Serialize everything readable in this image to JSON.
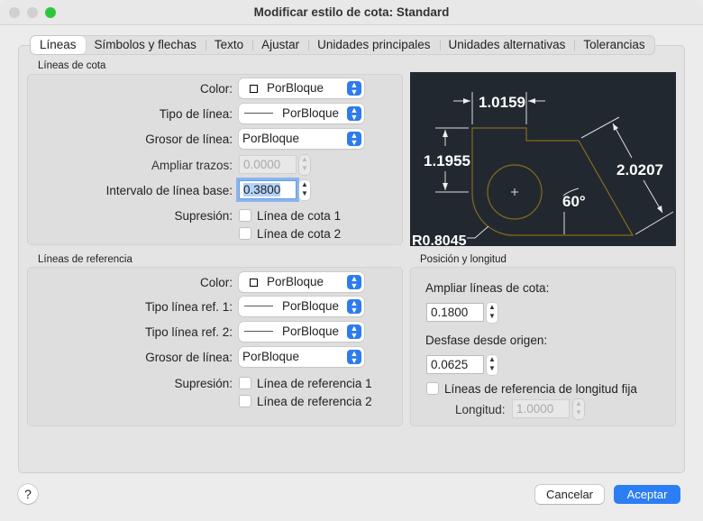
{
  "window": {
    "title": "Modificar estilo de cota: Standard"
  },
  "tabs": [
    {
      "label": "Líneas",
      "active": true
    },
    {
      "label": "Símbolos y flechas"
    },
    {
      "label": "Texto"
    },
    {
      "label": "Ajustar"
    },
    {
      "label": "Unidades principales"
    },
    {
      "label": "Unidades alternativas"
    },
    {
      "label": "Tolerancias"
    }
  ],
  "dim_lines": {
    "title": "Líneas de cota",
    "color_label": "Color:",
    "color_value": "PorBloque",
    "linetype_label": "Tipo de línea:",
    "linetype_value": "PorBloque",
    "lineweight_label": "Grosor de línea:",
    "lineweight_value": "PorBloque",
    "extend_label": "Ampliar trazos:",
    "extend_value": "0.0000",
    "baseline_label": "Intervalo de línea base:",
    "baseline_value": "0.3800",
    "suppress_label": "Supresión:",
    "suppress_1": "Línea de cota 1",
    "suppress_2": "Línea de cota 2"
  },
  "preview": {
    "dim_top": "1.0159",
    "dim_left": "1.1955",
    "dim_right": "2.0207",
    "angle": "60°",
    "radius": "R0.8045",
    "line_color": "#8a6a1e",
    "bg": "#212830"
  },
  "ext_lines": {
    "title": "Líneas de referencia",
    "color_label": "Color:",
    "color_value": "PorBloque",
    "linetype1_label": "Tipo línea ref. 1:",
    "linetype1_value": "PorBloque",
    "linetype2_label": "Tipo línea ref. 2:",
    "linetype2_value": "PorBloque",
    "lineweight_label": "Grosor de línea:",
    "lineweight_value": "PorBloque",
    "suppress_label": "Supresión:",
    "suppress_1": "Línea de referencia 1",
    "suppress_2": "Línea de referencia 2"
  },
  "position": {
    "title": "Posición y longitud",
    "extend_label": "Ampliar líneas de cota:",
    "extend_value": "0.1800",
    "offset_label": "Desfase desde origen:",
    "offset_value": "0.0625",
    "fixed_label": "Líneas de referencia de longitud fija",
    "length_label": "Longitud:",
    "length_value": "1.0000"
  },
  "footer": {
    "help": "?",
    "cancel": "Cancelar",
    "ok": "Aceptar"
  }
}
